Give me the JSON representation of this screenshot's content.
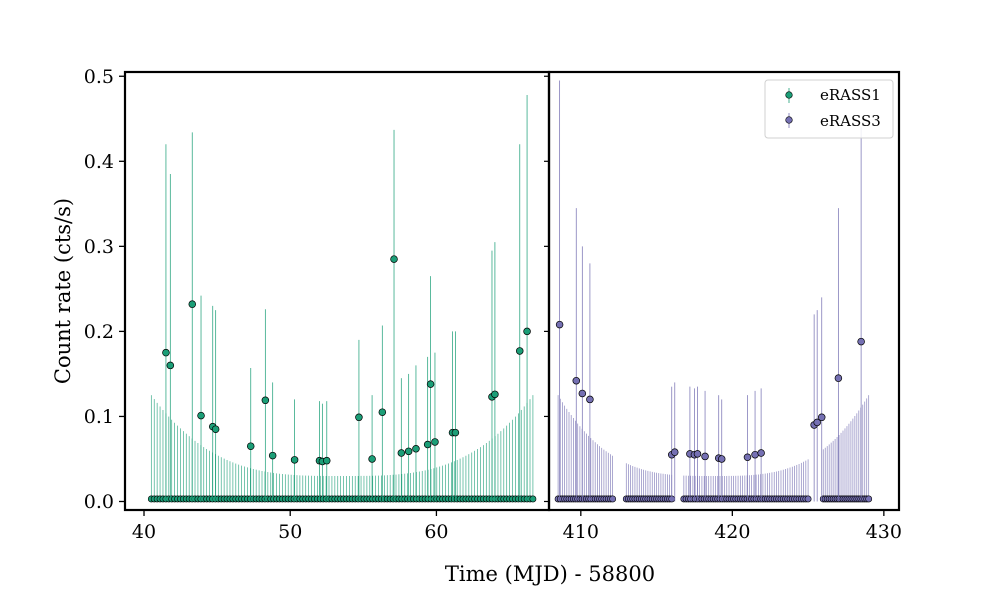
{
  "chart_data": {
    "type": "scatter",
    "title": "",
    "xlabel": "Time (MJD) - 58800",
    "ylabel": "Count rate (cts/s)",
    "ylim": [
      -0.01,
      0.505
    ],
    "yticks": [
      0.0,
      0.1,
      0.2,
      0.3,
      0.4,
      0.5
    ],
    "ytick_labels": [
      "0.0",
      "0.1",
      "0.2",
      "0.3",
      "0.4",
      "0.5"
    ],
    "legend_placement": "top-right",
    "panels": [
      {
        "xlim": [
          38.7,
          67.7
        ],
        "xticks": [
          40,
          50,
          60
        ],
        "xtick_labels": [
          "40",
          "50",
          "60"
        ],
        "series_index": 0
      },
      {
        "xlim": [
          407.9,
          431.0
        ],
        "xticks": [
          410,
          420,
          430
        ],
        "xtick_labels": [
          "410",
          "420",
          "430"
        ],
        "series_index": 1
      }
    ],
    "series": [
      {
        "name": "eRASS1",
        "color": "#1b9e77",
        "x_start": 40.5,
        "x_end": 66.6,
        "x_count": 132,
        "baseline_rate": 0.003,
        "upper_error_edge": 0.125,
        "upper_error_center": 0.03,
        "detections": [
          {
            "x": 41.5,
            "y": 0.175,
            "upper": 0.42
          },
          {
            "x": 41.8,
            "y": 0.16,
            "upper": 0.385
          },
          {
            "x": 43.3,
            "y": 0.232,
            "upper": 0.434
          },
          {
            "x": 43.9,
            "y": 0.101,
            "upper": 0.242
          },
          {
            "x": 44.7,
            "y": 0.088,
            "upper": 0.23
          },
          {
            "x": 44.9,
            "y": 0.085,
            "upper": 0.225
          },
          {
            "x": 47.3,
            "y": 0.065,
            "upper": 0.157
          },
          {
            "x": 48.3,
            "y": 0.119,
            "upper": 0.226
          },
          {
            "x": 48.8,
            "y": 0.054,
            "upper": 0.14
          },
          {
            "x": 50.3,
            "y": 0.049,
            "upper": 0.12
          },
          {
            "x": 52.0,
            "y": 0.048,
            "upper": 0.118
          },
          {
            "x": 52.2,
            "y": 0.047,
            "upper": 0.115
          },
          {
            "x": 52.5,
            "y": 0.048,
            "upper": 0.118
          },
          {
            "x": 54.7,
            "y": 0.099,
            "upper": 0.19
          },
          {
            "x": 55.6,
            "y": 0.05,
            "upper": 0.125
          },
          {
            "x": 56.3,
            "y": 0.105,
            "upper": 0.207
          },
          {
            "x": 57.1,
            "y": 0.285,
            "upper": 0.437
          },
          {
            "x": 57.6,
            "y": 0.057,
            "upper": 0.145
          },
          {
            "x": 58.1,
            "y": 0.059,
            "upper": 0.15
          },
          {
            "x": 58.6,
            "y": 0.062,
            "upper": 0.16
          },
          {
            "x": 59.4,
            "y": 0.067,
            "upper": 0.17
          },
          {
            "x": 59.6,
            "y": 0.138,
            "upper": 0.265
          },
          {
            "x": 59.9,
            "y": 0.07,
            "upper": 0.175
          },
          {
            "x": 61.1,
            "y": 0.081,
            "upper": 0.2
          },
          {
            "x": 61.3,
            "y": 0.081,
            "upper": 0.2
          },
          {
            "x": 63.8,
            "y": 0.123,
            "upper": 0.295
          },
          {
            "x": 64.0,
            "y": 0.126,
            "upper": 0.305
          },
          {
            "x": 65.7,
            "y": 0.177,
            "upper": 0.42
          },
          {
            "x": 66.2,
            "y": 0.2,
            "upper": 0.478
          }
        ]
      },
      {
        "name": "eRASS3",
        "color": "#7570b3",
        "baseline_rate": 0.003,
        "upper_error_edge": 0.125,
        "upper_error_center": 0.03,
        "x_segments": [
          [
            408.5,
            412.1,
            26
          ],
          [
            413.0,
            416.0,
            22
          ],
          [
            416.8,
            425.0,
            56
          ],
          [
            426.0,
            429.0,
            24
          ]
        ],
        "detections": [
          {
            "x": 408.6,
            "y": 0.208,
            "upper": 0.495
          },
          {
            "x": 409.7,
            "y": 0.142,
            "upper": 0.345
          },
          {
            "x": 410.1,
            "y": 0.127,
            "upper": 0.3
          },
          {
            "x": 410.6,
            "y": 0.12,
            "upper": 0.28
          },
          {
            "x": 416.0,
            "y": 0.055,
            "upper": 0.135
          },
          {
            "x": 416.2,
            "y": 0.058,
            "upper": 0.14
          },
          {
            "x": 417.2,
            "y": 0.056,
            "upper": 0.135
          },
          {
            "x": 417.5,
            "y": 0.055,
            "upper": 0.133
          },
          {
            "x": 417.7,
            "y": 0.056,
            "upper": 0.135
          },
          {
            "x": 418.2,
            "y": 0.053,
            "upper": 0.13
          },
          {
            "x": 419.1,
            "y": 0.051,
            "upper": 0.125
          },
          {
            "x": 419.3,
            "y": 0.05,
            "upper": 0.12
          },
          {
            "x": 421.0,
            "y": 0.052,
            "upper": 0.125
          },
          {
            "x": 421.5,
            "y": 0.055,
            "upper": 0.13
          },
          {
            "x": 421.9,
            "y": 0.057,
            "upper": 0.133
          },
          {
            "x": 425.4,
            "y": 0.09,
            "upper": 0.22
          },
          {
            "x": 425.6,
            "y": 0.093,
            "upper": 0.225
          },
          {
            "x": 425.9,
            "y": 0.099,
            "upper": 0.24
          },
          {
            "x": 427.0,
            "y": 0.145,
            "upper": 0.345
          },
          {
            "x": 428.5,
            "y": 0.188,
            "upper": 0.44
          }
        ]
      }
    ]
  }
}
